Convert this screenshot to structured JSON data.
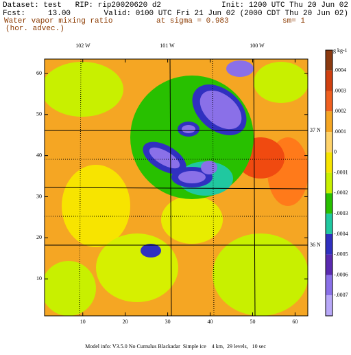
{
  "header": {
    "dataset": "Dataset: test   RIP: rip20020620 d2",
    "init": "Init: 1200 UTC Thu 20 Jun 02",
    "fcst": "Fcst:     13.00",
    "valid": "Valid: 0100 UTC Fri 21 Jun 02 (2000 CDT Thu 20 Jun 02)",
    "field": "Water vapor mixing ratio",
    "level": "at sigma = 0.983",
    "smooth": "sm= 1",
    "note": "(hor. advec.)"
  },
  "axes": {
    "xlim": [
      1,
      63
    ],
    "ylim": [
      1,
      63.5
    ],
    "xticks": [
      10,
      20,
      30,
      40,
      50,
      60
    ],
    "yticks": [
      10,
      20,
      30,
      40,
      50,
      60
    ]
  },
  "map_labels": {
    "longitudes": [
      "102 W",
      "101 W",
      "100 W"
    ],
    "latitudes": [
      "37 N",
      "36 N"
    ]
  },
  "colorbar": {
    "unit": "g kg-1",
    "labels": [
      ".0004",
      ".0003",
      ".0002",
      ".0001",
      "0",
      "-.0001",
      "-.0002",
      "-.0003",
      "-.0004",
      "-.0005",
      "-.0006",
      "-.0007"
    ]
  },
  "footer": "Model info: V3.5.0 No Cumulus Blackadar  Simple ice    4 km,  29 levels,   10 sec"
}
